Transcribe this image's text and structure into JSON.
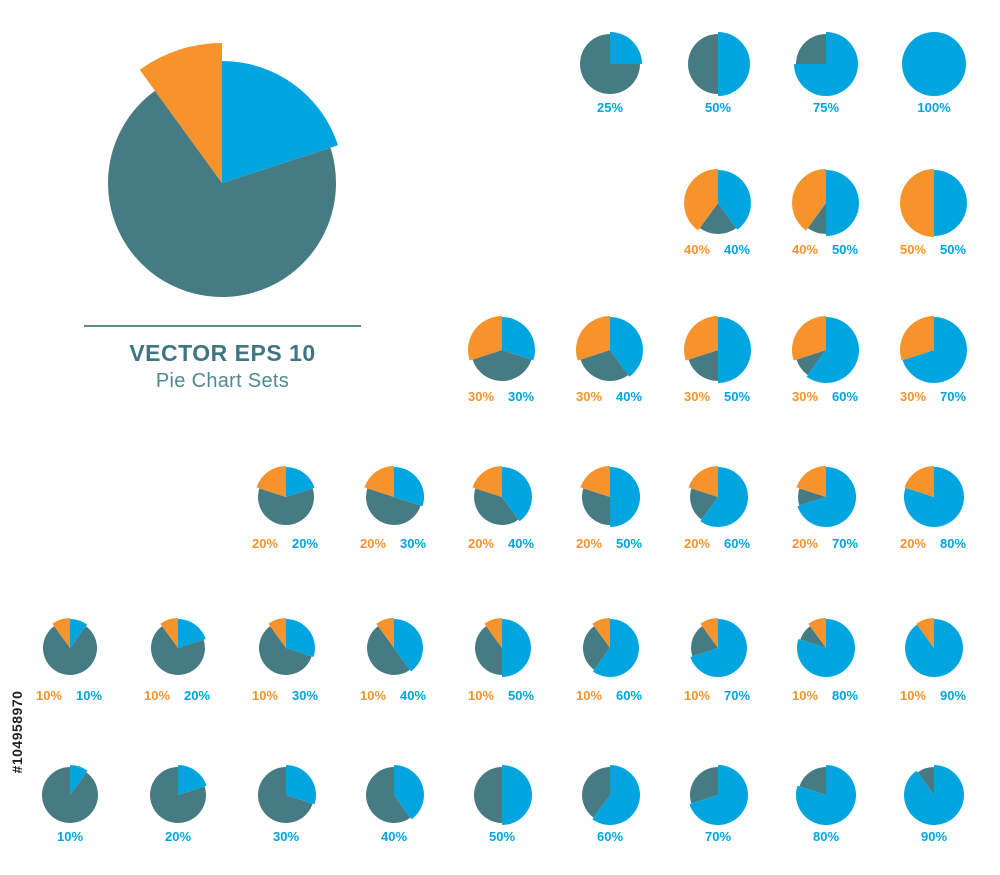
{
  "title": "VECTOR EPS 10",
  "subtitle": "Pie Chart Sets",
  "watermark": "#104958970",
  "colors": {
    "orange": "#f7932b",
    "blue": "#00a5e0",
    "teal": "#467b84"
  },
  "chart_data": {
    "type": "pie",
    "hero": {
      "orange": 10,
      "blue": 20
    },
    "rows": [
      [
        {
          "blue": 25,
          "labels": [
            "25%"
          ]
        },
        {
          "blue": 50,
          "labels": [
            "50%"
          ]
        },
        {
          "blue": 75,
          "labels": [
            "75%"
          ]
        },
        {
          "blue": 100,
          "labels": [
            "100%"
          ]
        }
      ],
      [
        {
          "orange": 40,
          "blue": 40,
          "labels": [
            "40%",
            "40%"
          ]
        },
        {
          "orange": 40,
          "blue": 50,
          "labels": [
            "40%",
            "50%"
          ]
        },
        {
          "orange": 50,
          "blue": 50,
          "labels": [
            "50%",
            "50%"
          ]
        }
      ],
      [
        {
          "orange": 30,
          "blue": 30,
          "labels": [
            "30%",
            "30%"
          ]
        },
        {
          "orange": 30,
          "blue": 40,
          "labels": [
            "30%",
            "40%"
          ]
        },
        {
          "orange": 30,
          "blue": 50,
          "labels": [
            "30%",
            "50%"
          ]
        },
        {
          "orange": 30,
          "blue": 60,
          "labels": [
            "30%",
            "60%"
          ]
        },
        {
          "orange": 30,
          "blue": 70,
          "labels": [
            "30%",
            "70%"
          ]
        }
      ],
      [
        {
          "orange": 20,
          "blue": 20,
          "labels": [
            "20%",
            "20%"
          ]
        },
        {
          "orange": 20,
          "blue": 30,
          "labels": [
            "20%",
            "30%"
          ]
        },
        {
          "orange": 20,
          "blue": 40,
          "labels": [
            "20%",
            "40%"
          ]
        },
        {
          "orange": 20,
          "blue": 50,
          "labels": [
            "20%",
            "50%"
          ]
        },
        {
          "orange": 20,
          "blue": 60,
          "labels": [
            "20%",
            "60%"
          ]
        },
        {
          "orange": 20,
          "blue": 70,
          "labels": [
            "20%",
            "70%"
          ]
        },
        {
          "orange": 20,
          "blue": 80,
          "labels": [
            "20%",
            "80%"
          ]
        }
      ],
      [
        {
          "orange": 10,
          "blue": 10,
          "labels": [
            "10%",
            "10%"
          ]
        },
        {
          "orange": 10,
          "blue": 20,
          "labels": [
            "10%",
            "20%"
          ]
        },
        {
          "orange": 10,
          "blue": 30,
          "labels": [
            "10%",
            "30%"
          ]
        },
        {
          "orange": 10,
          "blue": 40,
          "labels": [
            "10%",
            "40%"
          ]
        },
        {
          "orange": 10,
          "blue": 50,
          "labels": [
            "10%",
            "50%"
          ]
        },
        {
          "orange": 10,
          "blue": 60,
          "labels": [
            "10%",
            "60%"
          ]
        },
        {
          "orange": 10,
          "blue": 70,
          "labels": [
            "10%",
            "70%"
          ]
        },
        {
          "orange": 10,
          "blue": 80,
          "labels": [
            "10%",
            "80%"
          ]
        },
        {
          "orange": 10,
          "blue": 90,
          "labels": [
            "10%",
            "90%"
          ]
        }
      ],
      [
        {
          "blue": 10,
          "labels": [
            "10%"
          ]
        },
        {
          "blue": 20,
          "labels": [
            "20%"
          ]
        },
        {
          "blue": 30,
          "labels": [
            "30%"
          ]
        },
        {
          "blue": 40,
          "labels": [
            "40%"
          ]
        },
        {
          "blue": 50,
          "labels": [
            "50%"
          ]
        },
        {
          "blue": 60,
          "labels": [
            "60%"
          ]
        },
        {
          "blue": 70,
          "labels": [
            "70%"
          ]
        },
        {
          "blue": 80,
          "labels": [
            "80%"
          ]
        },
        {
          "blue": 90,
          "labels": [
            "90%"
          ]
        }
      ]
    ]
  }
}
